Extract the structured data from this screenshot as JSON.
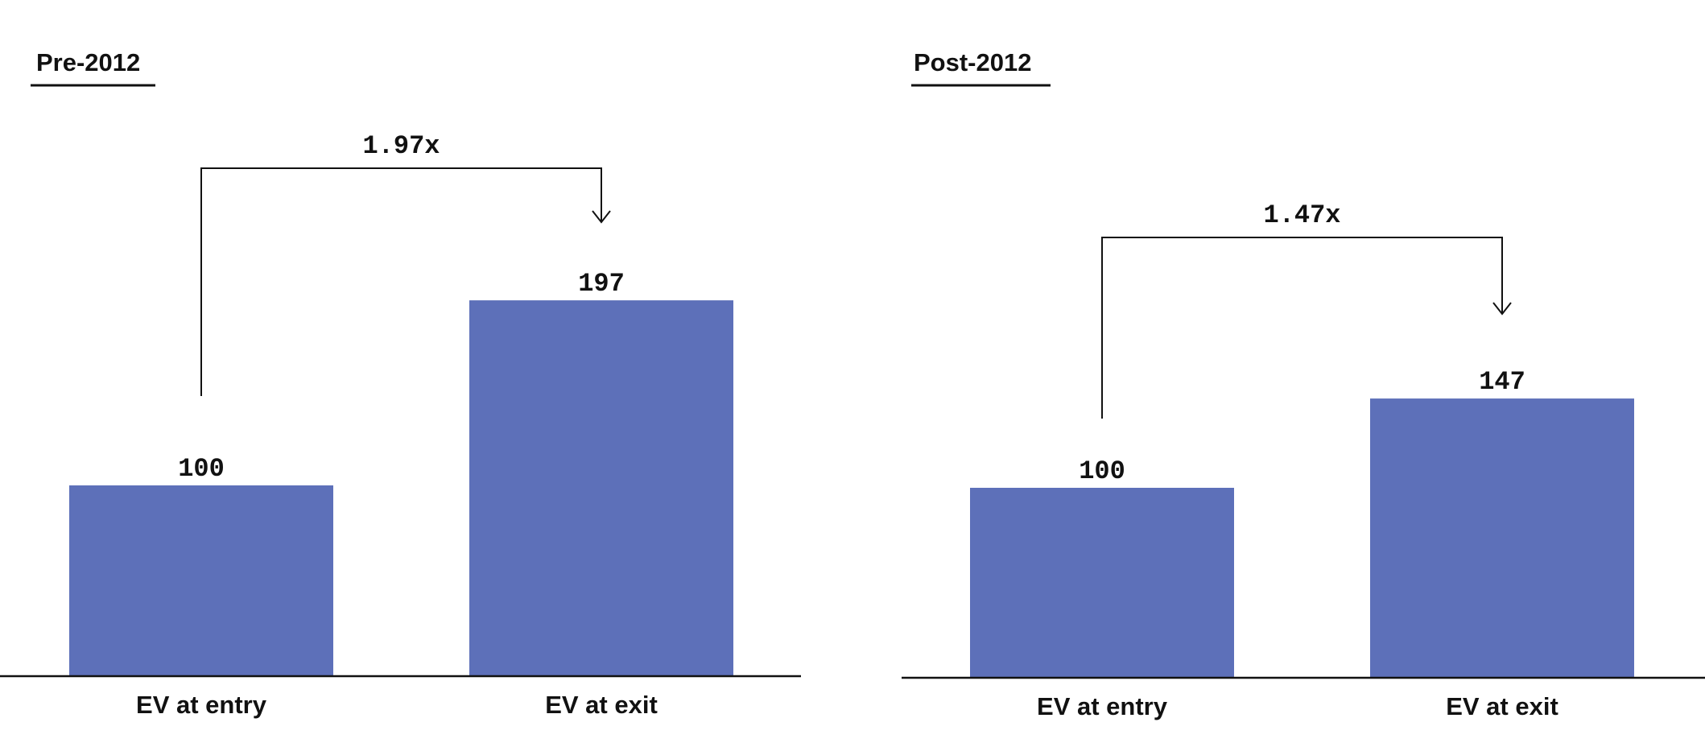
{
  "colors": {
    "bar": "#5d70b9",
    "text": "#111111"
  },
  "chart_data": [
    {
      "type": "bar",
      "title": "Pre-2012",
      "categories": [
        "EV at entry",
        "EV at exit"
      ],
      "values": [
        100,
        197
      ],
      "value_labels": [
        "100",
        "197"
      ],
      "multiple_label": "1.97x",
      "ylim": [
        0,
        220
      ]
    },
    {
      "type": "bar",
      "title": "Post-2012",
      "categories": [
        "EV at entry",
        "EV at exit"
      ],
      "values": [
        100,
        147
      ],
      "value_labels": [
        "100",
        "147"
      ],
      "multiple_label": "1.47x",
      "ylim": [
        0,
        220
      ]
    }
  ]
}
